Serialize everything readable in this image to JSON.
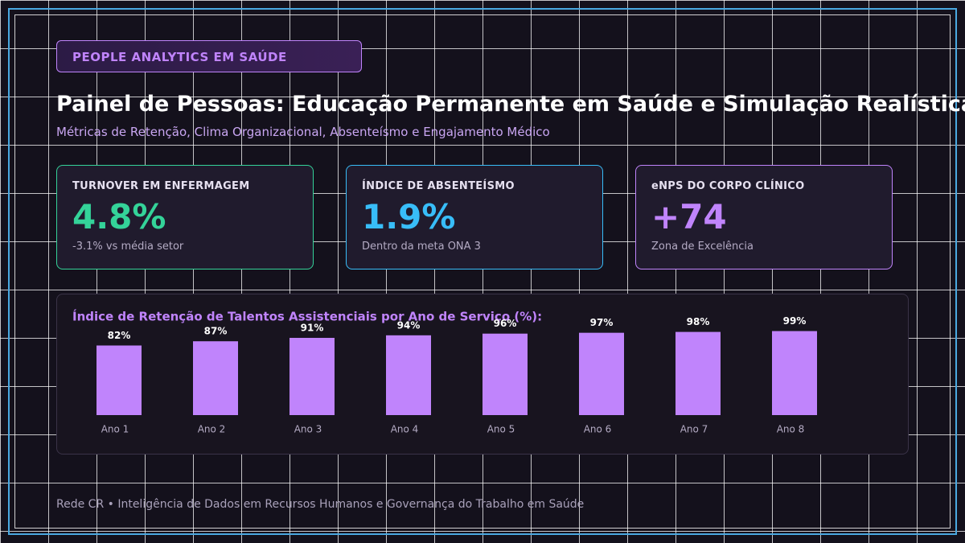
{
  "badge": "PEOPLE ANALYTICS EM SAÚDE",
  "header": {
    "title": "Painel de Pessoas: Educação Permanente em Saúde e Simulação Realística",
    "subtitle": "Métricas de Retenção, Clima Organizacional, Absenteísmo e Engajamento Médico"
  },
  "kpis": [
    {
      "label": "TURNOVER EM ENFERMAGEM",
      "value": "4.8%",
      "note": "-3.1% vs média setor",
      "color": "#34d399"
    },
    {
      "label": "ÍNDICE DE ABSENTEÍSMO",
      "value": "1.9%",
      "note": "Dentro da meta ONA 3",
      "color": "#38bdf8"
    },
    {
      "label": "eNPS DO CORPO CLÍNICO",
      "value": "+74",
      "note": "Zona de Excelência",
      "color": "#c084fc"
    }
  ],
  "chart_data": {
    "type": "bar",
    "title": "Índice de Retenção de Talentos Assistenciais por Ano de Serviço (%):",
    "categories": [
      "Ano 1",
      "Ano 2",
      "Ano 3",
      "Ano 4",
      "Ano 5",
      "Ano 6",
      "Ano 7",
      "Ano 8"
    ],
    "values": [
      82,
      87,
      91,
      94,
      96,
      97,
      98,
      99
    ],
    "value_labels": [
      "82%",
      "87%",
      "91%",
      "94%",
      "96%",
      "97%",
      "98%",
      "99%"
    ],
    "color": "#c084fc"
  },
  "footer": "Rede CR • Inteligência de Dados em Recursos Humanos e Governança do Trabalho em Saúde"
}
